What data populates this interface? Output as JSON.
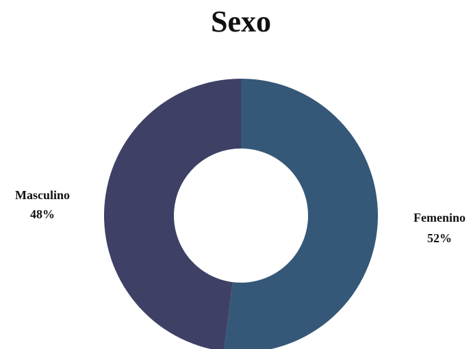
{
  "chart_data": {
    "type": "pie",
    "subtype": "donut",
    "title": "Sexo",
    "categories": [
      "Femenino",
      "Masculino"
    ],
    "values": [
      52,
      48
    ],
    "value_labels": [
      "52%",
      "48%"
    ],
    "colors": [
      "#355878",
      "#3e4066"
    ],
    "legend": "none",
    "start_angle_deg": 0,
    "direction": "clockwise"
  }
}
